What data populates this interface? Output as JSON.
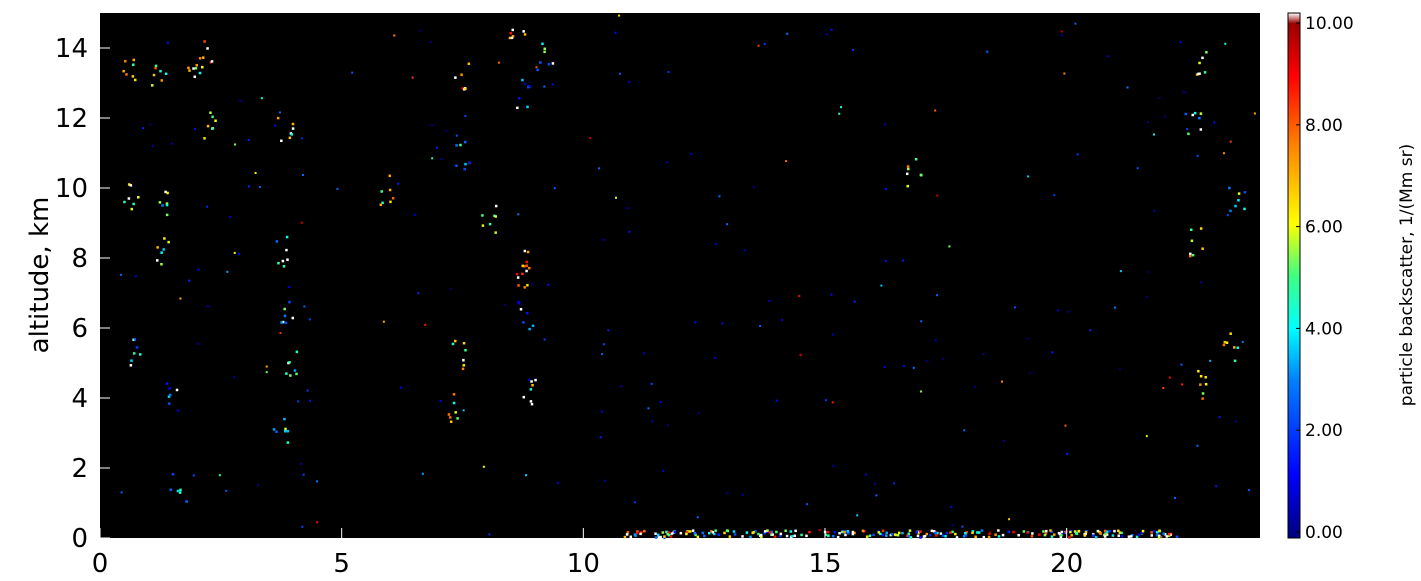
{
  "chart_data": {
    "type": "heatmap",
    "title": "",
    "xlabel": "",
    "ylabel": "altitude, km",
    "xlim": [
      0,
      24
    ],
    "ylim": [
      0,
      15
    ],
    "x_ticks": [
      "0",
      "5",
      "10",
      "15",
      "20"
    ],
    "y_ticks": [
      "0",
      "2",
      "4",
      "6",
      "8",
      "10",
      "12",
      "14"
    ],
    "background": "#000000",
    "grid": false,
    "colorbar": {
      "label": "particle backscatter, 1/(Mm sr)",
      "range": [
        0,
        10
      ],
      "ticks": [
        "0.00",
        "2.00",
        "4.00",
        "6.00",
        "8.00",
        "10.00"
      ],
      "colormap": "rainbow"
    },
    "clusters": [
      {
        "x": 0.6,
        "y": 13.4,
        "v": 6
      },
      {
        "x": 0.6,
        "y": 9.8,
        "v": 5
      },
      {
        "x": 0.7,
        "y": 5.3,
        "v": 4
      },
      {
        "x": 1.2,
        "y": 13.2,
        "v": 6
      },
      {
        "x": 1.3,
        "y": 9.6,
        "v": 5
      },
      {
        "x": 1.3,
        "y": 8.3,
        "v": 5
      },
      {
        "x": 1.5,
        "y": 4.1,
        "v": 2
      },
      {
        "x": 1.6,
        "y": 1.5,
        "v": 3
      },
      {
        "x": 1.9,
        "y": 13.1,
        "v": 6
      },
      {
        "x": 2.2,
        "y": 13.9,
        "v": 7
      },
      {
        "x": 2.2,
        "y": 11.8,
        "v": 6
      },
      {
        "x": 3.8,
        "y": 11.6,
        "v": 6
      },
      {
        "x": 3.8,
        "y": 8.2,
        "v": 3
      },
      {
        "x": 3.9,
        "y": 6.4,
        "v": 4
      },
      {
        "x": 3.9,
        "y": 5.1,
        "v": 5
      },
      {
        "x": 3.7,
        "y": 3.1,
        "v": 4
      },
      {
        "x": 5.9,
        "y": 10.0,
        "v": 6
      },
      {
        "x": 7.5,
        "y": 13.3,
        "v": 7
      },
      {
        "x": 7.5,
        "y": 11.0,
        "v": 3
      },
      {
        "x": 7.4,
        "y": 5.3,
        "v": 6
      },
      {
        "x": 7.3,
        "y": 3.7,
        "v": 6
      },
      {
        "x": 8.0,
        "y": 9.1,
        "v": 5
      },
      {
        "x": 8.6,
        "y": 14.3,
        "v": 7
      },
      {
        "x": 8.7,
        "y": 12.7,
        "v": 2
      },
      {
        "x": 8.7,
        "y": 8.0,
        "v": 7
      },
      {
        "x": 8.8,
        "y": 7.5,
        "v": 8
      },
      {
        "x": 8.8,
        "y": 6.4,
        "v": 3
      },
      {
        "x": 8.9,
        "y": 4.2,
        "v": 6
      },
      {
        "x": 9.2,
        "y": 13.8,
        "v": 4
      },
      {
        "x": 16.8,
        "y": 10.5,
        "v": 6
      },
      {
        "x": 22.6,
        "y": 11.9,
        "v": 4
      },
      {
        "x": 22.7,
        "y": 8.5,
        "v": 6
      },
      {
        "x": 22.7,
        "y": 13.5,
        "v": 5
      },
      {
        "x": 23.5,
        "y": 9.8,
        "v": 4
      },
      {
        "x": 23.4,
        "y": 5.5,
        "v": 6
      },
      {
        "x": 22.8,
        "y": 4.4,
        "v": 6
      }
    ],
    "surface_layer": {
      "x_range": [
        10.8,
        22.4
      ],
      "y": 0.15,
      "v": 5
    }
  }
}
